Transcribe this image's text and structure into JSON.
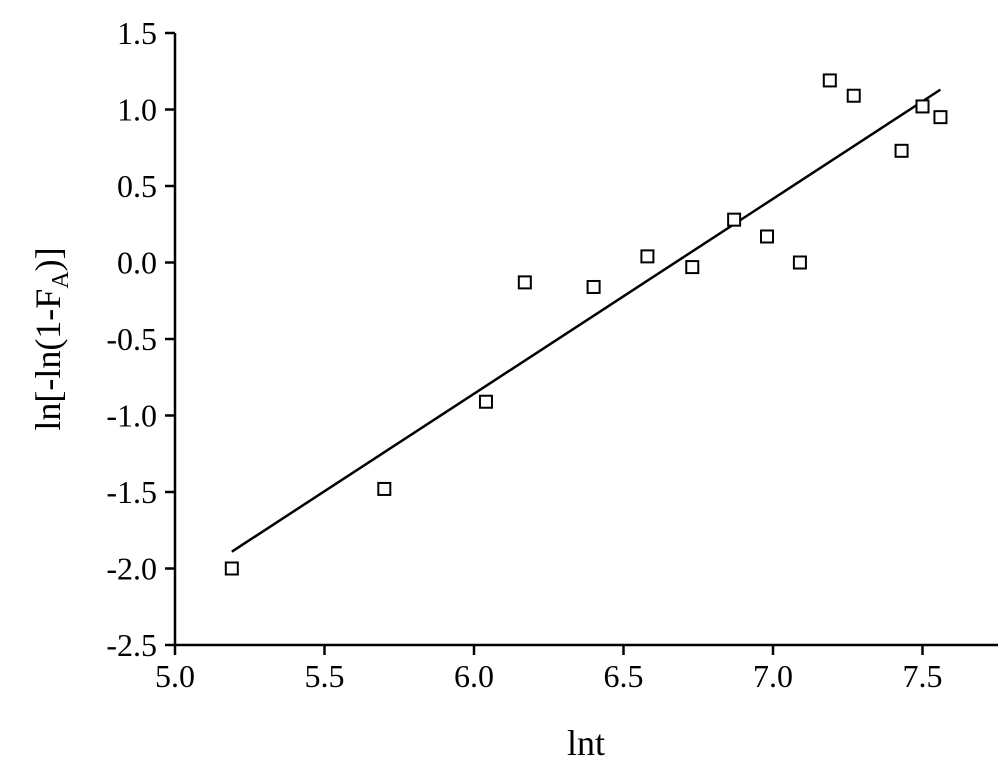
{
  "chart_data": {
    "type": "scatter",
    "xlabel": "lnt",
    "ylabel": {
      "main": "ln[-ln(1-F",
      "sub": "A",
      "tail": ")]"
    },
    "xlim": [
      5.0,
      7.8
    ],
    "ylim": [
      -2.5,
      1.5
    ],
    "xticks": [
      "5.0",
      "5.5",
      "6.0",
      "6.5",
      "7.0",
      "7.5"
    ],
    "yticks": [
      "1.5",
      "1.0",
      "0.5",
      "0.0",
      "-0.5",
      "-1.0",
      "-1.5",
      "-2.0",
      "-2.5"
    ],
    "grid": false,
    "series": [
      {
        "marker": "open-square",
        "points": [
          [
            5.19,
            -2.0
          ],
          [
            5.7,
            -1.48
          ],
          [
            6.04,
            -0.91
          ],
          [
            6.17,
            -0.13
          ],
          [
            6.4,
            -0.16
          ],
          [
            6.58,
            0.04
          ],
          [
            6.73,
            -0.03
          ],
          [
            6.87,
            0.28
          ],
          [
            6.98,
            0.17
          ],
          [
            7.09,
            0.0
          ],
          [
            7.19,
            1.19
          ],
          [
            7.27,
            1.09
          ],
          [
            7.43,
            0.73
          ],
          [
            7.5,
            1.02
          ],
          [
            7.56,
            0.95
          ]
        ]
      }
    ],
    "fit_line": {
      "x": [
        5.19,
        7.56
      ],
      "y": [
        -1.89,
        1.13
      ]
    }
  }
}
